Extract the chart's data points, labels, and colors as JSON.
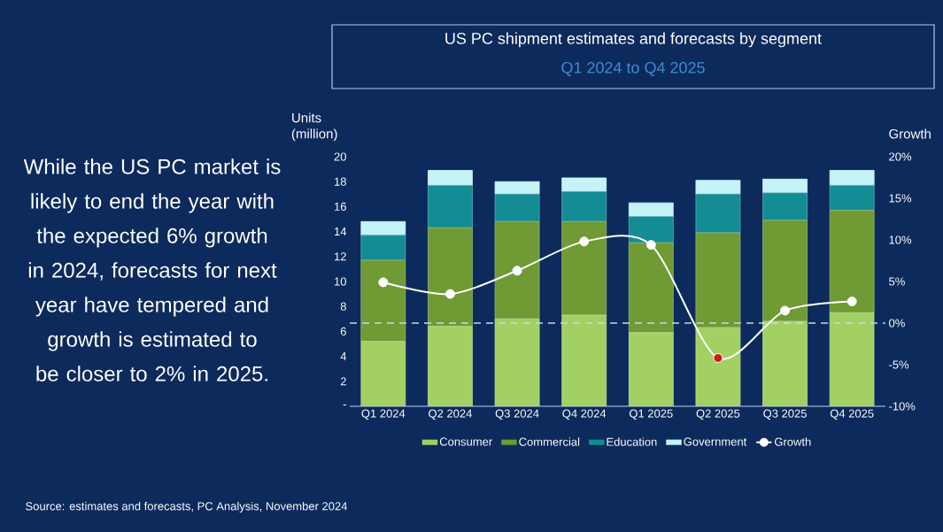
{
  "chart_data": {
    "type": "bar",
    "title": "US PC shipment estimates and forecasts by segment",
    "subtitle": "Q1 2024 to Q4 2025",
    "ylabel": "Units (million)",
    "y2label": "Growth",
    "categories": [
      "Q1 2024",
      "Q2 2024",
      "Q3 2024",
      "Q4 2024",
      "Q1 2025",
      "Q2 2025",
      "Q3 2025",
      "Q4 2025"
    ],
    "stacked": true,
    "series": [
      {
        "name": "Consumer",
        "color": "#a2d063",
        "values": [
          5.2,
          6.4,
          7.0,
          7.3,
          5.9,
          6.3,
          6.8,
          7.5
        ]
      },
      {
        "name": "Commercial",
        "color": "#6f9a34",
        "values": [
          6.5,
          7.9,
          7.8,
          7.5,
          7.2,
          7.6,
          8.1,
          8.2
        ]
      },
      {
        "name": "Education",
        "color": "#138c94",
        "values": [
          2.0,
          3.4,
          2.2,
          2.4,
          2.1,
          3.1,
          2.2,
          2.0
        ]
      },
      {
        "name": "Government",
        "color": "#c4f3f8",
        "values": [
          1.1,
          1.2,
          1.0,
          1.1,
          1.1,
          1.1,
          1.1,
          1.2
        ]
      },
      {
        "name": "Growth",
        "type": "line",
        "axis": "y2",
        "marker": "circle",
        "color": "#ffffff",
        "colors": [
          "#ffffff",
          "#ffffff",
          "#ffffff",
          "#ffffff",
          "#ffffff",
          "#d11a1a",
          "#ffffff",
          "#ffffff"
        ],
        "values": [
          4.9,
          3.5,
          6.3,
          9.8,
          9.4,
          -4.2,
          1.5,
          2.6
        ]
      }
    ],
    "ylim": [
      0,
      20
    ],
    "yticks": [
      {
        "value": 0,
        "label": "-"
      },
      2,
      4,
      6,
      8,
      10,
      12,
      14,
      16,
      18,
      20
    ],
    "y2lim": [
      -10,
      20
    ],
    "y2ticks": [
      {
        "value": -10,
        "label": "-10%"
      },
      {
        "value": -5,
        "label": "-5%"
      },
      {
        "value": 0,
        "label": "0%"
      },
      {
        "value": 5,
        "label": "5%"
      },
      {
        "value": 10,
        "label": "10%"
      },
      {
        "value": 15,
        "label": "15%"
      },
      {
        "value": 20,
        "label": "20%"
      }
    ],
    "ref_lines": [
      {
        "axis": "y2",
        "value": 0,
        "color": "#c8d8e8",
        "line_style": "dashed"
      }
    ],
    "legend": "bottom",
    "annotations": [
      "While the US PC market is likely to end the year with the expected 6% growth in 2024, forecasts for next year have tempered and growth is estimated to be closer to 2% in 2025.",
      "Source: estimates and forecasts, PC Analysis, November 2024"
    ]
  }
}
